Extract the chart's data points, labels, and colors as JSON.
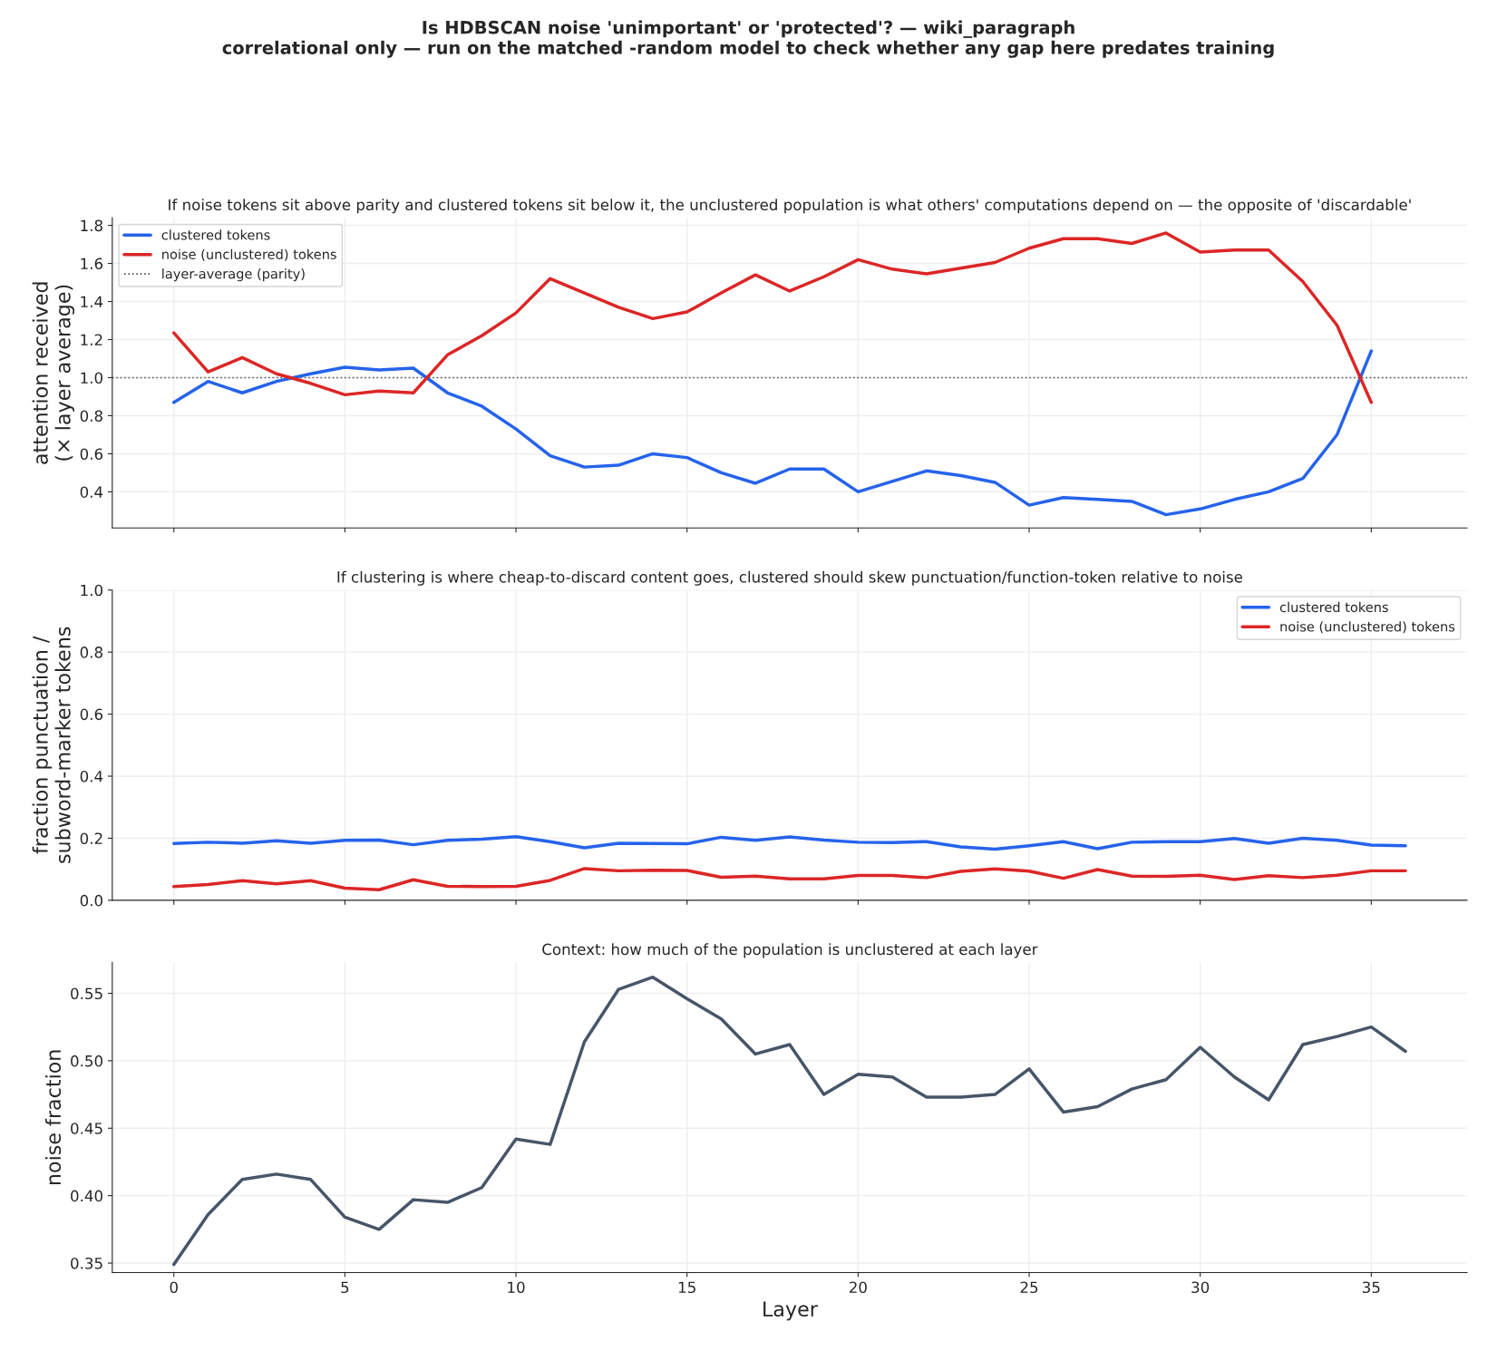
{
  "chart_data": [
    {
      "type": "line",
      "title": "Is HDBSCAN noise 'unimportant' or 'protected'? — wiki_paragraph",
      "subtitle": "correlational only — run on the matched -random model to check whether any gap here predates training",
      "annotations": [
        "If noise tokens sit above parity and clustered tokens sit below it, the unclustered population is what others' computations depend on — the opposite of 'discardable'"
      ],
      "ylabel": "attention received\n(× layer average)",
      "x": [
        0,
        1,
        2,
        3,
        4,
        5,
        6,
        7,
        8,
        9,
        10,
        11,
        12,
        13,
        14,
        15,
        16,
        17,
        18,
        19,
        20,
        21,
        22,
        23,
        24,
        25,
        26,
        27,
        28,
        29,
        30,
        31,
        32,
        33,
        34,
        35
      ],
      "series": [
        {
          "name": "clustered tokens",
          "color": "#2563eb",
          "values": [
            0.87,
            0.98,
            0.92,
            0.98,
            1.02,
            1.055,
            1.04,
            1.05,
            0.92,
            0.85,
            0.73,
            0.59,
            0.53,
            0.54,
            0.6,
            0.58,
            0.5,
            0.445,
            0.52,
            0.52,
            0.4,
            0.455,
            0.51,
            0.485,
            0.45,
            0.33,
            0.37,
            0.36,
            0.35,
            0.28,
            0.31,
            0.36,
            0.4,
            0.47,
            0.7,
            1.14
          ]
        },
        {
          "name": "noise (unclustered) tokens",
          "color": "#dc2626",
          "values": [
            1.235,
            1.03,
            1.105,
            1.02,
            0.97,
            0.91,
            0.93,
            0.92,
            1.12,
            1.22,
            1.34,
            1.52,
            1.445,
            1.37,
            1.31,
            1.345,
            1.445,
            1.54,
            1.455,
            1.53,
            1.62,
            1.57,
            1.545,
            1.575,
            1.605,
            1.68,
            1.73,
            1.73,
            1.705,
            1.76,
            1.66,
            1.67,
            1.67,
            1.505,
            1.275,
            0.87
          ]
        }
      ],
      "ref_lines": [
        {
          "axis": "y",
          "value": 1.0,
          "label": "layer-average (parity)",
          "color": "#555555",
          "line_style": "dotted"
        }
      ],
      "xlim": [
        -1.8,
        37.8
      ],
      "xticks": [
        0,
        5,
        10,
        15,
        20,
        25,
        30,
        35
      ],
      "ylim": [
        0.21,
        1.84
      ],
      "yticks": [
        0.4,
        0.6,
        0.8,
        {
          "value": 1,
          "label": "1.0"
        },
        1.2,
        1.4,
        1.6,
        1.8
      ],
      "grid": true,
      "legend": "top left",
      "tick_labels": "y"
    },
    {
      "type": "line",
      "title": "If clustering is where cheap-to-discard content goes, clustered should skew punctuation/function-token relative to noise",
      "ylabel": "fraction punctuation /\nsubword-marker tokens",
      "x": [
        0,
        1,
        2,
        3,
        4,
        5,
        6,
        7,
        8,
        9,
        10,
        11,
        12,
        13,
        14,
        15,
        16,
        17,
        18,
        19,
        20,
        21,
        22,
        23,
        24,
        25,
        26,
        27,
        28,
        29,
        30,
        31,
        32,
        33,
        34,
        35,
        36
      ],
      "series": [
        {
          "name": "clustered tokens",
          "color": "#2563eb",
          "values": [
            0.183,
            0.187,
            0.184,
            0.192,
            0.184,
            0.193,
            0.194,
            0.179,
            0.193,
            0.197,
            0.205,
            0.189,
            0.169,
            0.184,
            0.183,
            0.182,
            0.203,
            0.193,
            0.204,
            0.194,
            0.187,
            0.186,
            0.189,
            0.172,
            0.165,
            0.176,
            0.189,
            0.166,
            0.187,
            0.189,
            0.189,
            0.199,
            0.184,
            0.2,
            0.193,
            0.178,
            0.176
          ]
        },
        {
          "name": "noise (unclustered) tokens",
          "color": "#dc2626",
          "values": [
            0.044,
            0.051,
            0.063,
            0.053,
            0.063,
            0.039,
            0.034,
            0.066,
            0.045,
            0.044,
            0.045,
            0.064,
            0.102,
            0.095,
            0.097,
            0.096,
            0.074,
            0.078,
            0.069,
            0.069,
            0.08,
            0.08,
            0.073,
            0.093,
            0.101,
            0.094,
            0.071,
            0.099,
            0.078,
            0.077,
            0.081,
            0.067,
            0.079,
            0.073,
            0.081,
            0.095,
            0.095
          ]
        }
      ],
      "xlim": [
        -1.8,
        37.8
      ],
      "xticks": [
        0,
        5,
        10,
        15,
        20,
        25,
        30,
        35
      ],
      "ylim": [
        0,
        1.0
      ],
      "yticks": [
        {
          "value": 0,
          "label": "0.0"
        },
        0.2,
        0.4,
        0.6,
        0.8,
        {
          "value": 1,
          "label": "1.0"
        }
      ],
      "grid": true,
      "legend": "top right",
      "tick_labels": "y"
    },
    {
      "type": "line",
      "title": "Context: how much of the population is unclustered at each layer",
      "xlabel": "Layer",
      "ylabel": "noise fraction",
      "x": [
        0,
        1,
        2,
        3,
        4,
        5,
        6,
        7,
        8,
        9,
        10,
        11,
        12,
        13,
        14,
        15,
        16,
        17,
        18,
        19,
        20,
        21,
        22,
        23,
        24,
        25,
        26,
        27,
        28,
        29,
        30,
        31,
        32,
        33,
        34,
        35,
        36
      ],
      "series": [
        {
          "color": "#475569",
          "values": [
            0.349,
            0.386,
            0.412,
            0.416,
            0.412,
            0.384,
            0.375,
            0.397,
            0.395,
            0.406,
            0.442,
            0.438,
            0.514,
            0.553,
            0.562,
            0.546,
            0.531,
            0.505,
            0.512,
            0.475,
            0.49,
            0.488,
            0.473,
            0.473,
            0.475,
            0.494,
            0.462,
            0.466,
            0.479,
            0.486,
            0.51,
            0.488,
            0.471,
            0.512,
            0.518,
            0.525,
            0.507
          ]
        }
      ],
      "xlim": [
        -1.8,
        37.8
      ],
      "xticks": [
        0,
        5,
        10,
        15,
        20,
        25,
        30,
        35
      ],
      "ylim": [
        0.343,
        0.573
      ],
      "yticks": [
        0.35,
        {
          "value": 0.4,
          "label": "0.40"
        },
        0.45,
        {
          "value": 0.5,
          "label": "0.50"
        },
        0.55
      ],
      "grid": true
    }
  ]
}
